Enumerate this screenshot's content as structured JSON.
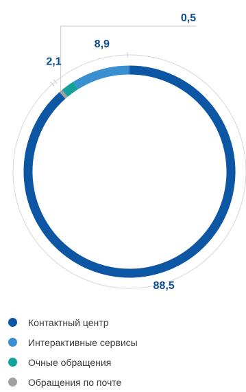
{
  "chart_data": {
    "type": "pie",
    "title": "",
    "categories": [
      "Контактный центр",
      "Интерактивные сервисы",
      "Очные обращения",
      "Обращения по почте"
    ],
    "values": [
      88.5,
      8.9,
      2.1,
      0.5
    ],
    "value_labels": [
      "88,5",
      "8,9",
      "2,1",
      "0,5"
    ],
    "colors": [
      "#0c56a3",
      "#3a8fd1",
      "#13a19a",
      "#9ea0a3"
    ],
    "legend_position": "bottom-left"
  }
}
